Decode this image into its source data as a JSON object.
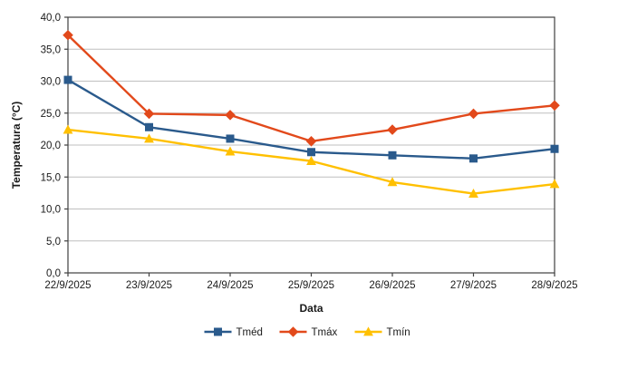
{
  "chart_data": {
    "type": "line",
    "title": "",
    "xlabel": "Data",
    "ylabel": "Temperatura (°C)",
    "categories": [
      "22/9/2025",
      "23/9/2025",
      "24/9/2025",
      "25/9/2025",
      "26/9/2025",
      "27/9/2025",
      "28/9/2025"
    ],
    "series": [
      {
        "id": "tmed",
        "name": "Tméd",
        "marker": "square",
        "color": "#2A5A8C",
        "values": [
          30.2,
          22.8,
          21.0,
          18.9,
          18.4,
          17.9,
          19.4
        ]
      },
      {
        "id": "tmax",
        "name": "Tmáx",
        "marker": "diamond",
        "color": "#E2491B",
        "values": [
          37.2,
          24.9,
          24.7,
          20.6,
          22.4,
          24.9,
          26.2
        ]
      },
      {
        "id": "tmin",
        "name": "Tmín",
        "marker": "triangle",
        "color": "#FFC000",
        "values": [
          22.4,
          21.0,
          19.0,
          17.5,
          14.2,
          12.4,
          13.9
        ]
      }
    ],
    "ylim": [
      0,
      40
    ],
    "y_ticks": [
      0,
      5,
      10,
      15,
      20,
      25,
      30,
      35,
      40
    ],
    "y_tick_labels": [
      "0,0",
      "5,0",
      "10,0",
      "15,0",
      "20,0",
      "25,0",
      "30,0",
      "35,0",
      "40,0"
    ],
    "grid": true,
    "legend_position": "bottom",
    "colors": {
      "background": "#FFFFFF",
      "gridline": "#BFBFBF",
      "axis": "#404040",
      "text": "#1A1A1A"
    }
  }
}
